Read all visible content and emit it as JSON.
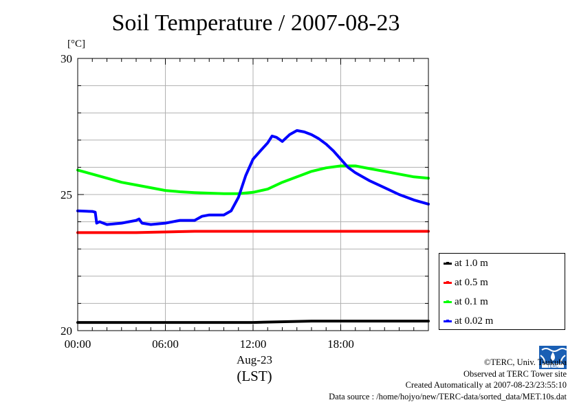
{
  "chart_data": {
    "type": "line",
    "title": "Soil Temperature / 2007-08-23",
    "ylabel": "[°C]",
    "xlabel_date": "Aug-23",
    "xlabel_unit": "(LST)",
    "ylim": [
      20,
      30
    ],
    "y_ticks": [
      "20",
      "25",
      "30"
    ],
    "xlim_hours": [
      0,
      24
    ],
    "x_ticks": [
      "00:00",
      "06:00",
      "12:00",
      "18:00"
    ],
    "grid": true,
    "legend_position": "right",
    "series": [
      {
        "name": "at 1.0 m",
        "color": "#000000",
        "x": [
          0,
          4,
          8,
          12,
          16,
          20,
          24
        ],
        "values": [
          20.3,
          20.3,
          20.3,
          20.3,
          20.35,
          20.35,
          20.35
        ]
      },
      {
        "name": "at 0.5 m",
        "color": "#ff0000",
        "x": [
          0,
          4,
          8,
          12,
          16,
          20,
          24
        ],
        "values": [
          23.6,
          23.6,
          23.65,
          23.65,
          23.65,
          23.65,
          23.65
        ]
      },
      {
        "name": "at 0.1 m",
        "color": "#00ff00",
        "x": [
          0,
          1,
          2,
          3,
          4,
          5,
          6,
          7,
          8,
          9,
          10,
          11,
          12,
          13,
          14,
          15,
          16,
          17,
          18,
          19,
          20,
          21,
          22,
          23,
          24
        ],
        "values": [
          25.9,
          25.75,
          25.6,
          25.45,
          25.35,
          25.25,
          25.15,
          25.1,
          25.07,
          25.05,
          25.03,
          25.03,
          25.08,
          25.2,
          25.45,
          25.65,
          25.85,
          25.98,
          26.05,
          26.05,
          25.95,
          25.85,
          25.75,
          25.65,
          25.6
        ]
      },
      {
        "name": "at 0.02 m",
        "color": "#0000ff",
        "x": [
          0,
          1,
          1.2,
          1.3,
          1.5,
          2,
          3,
          4,
          4.2,
          4.4,
          5,
          6,
          7,
          8,
          8.5,
          9,
          10,
          10.5,
          11,
          11.5,
          12,
          12.5,
          13,
          13.3,
          13.6,
          14,
          14.5,
          15,
          15.5,
          16,
          16.5,
          17,
          17.5,
          18,
          18.5,
          19,
          20,
          21,
          22,
          23,
          24
        ],
        "values": [
          24.4,
          24.38,
          24.35,
          23.95,
          24.0,
          23.9,
          23.95,
          24.05,
          24.1,
          23.95,
          23.9,
          23.95,
          24.05,
          24.05,
          24.2,
          24.25,
          24.25,
          24.4,
          24.9,
          25.7,
          26.3,
          26.6,
          26.9,
          27.15,
          27.1,
          26.95,
          27.2,
          27.35,
          27.3,
          27.2,
          27.05,
          26.85,
          26.6,
          26.3,
          26.0,
          25.8,
          25.5,
          25.25,
          25.0,
          24.8,
          24.65
        ]
      }
    ]
  },
  "credits": {
    "copyright": "©TERC, Univ. Tsukuba",
    "observed": "Observed at TERC Tower site",
    "created": "Created Automatically at 2007-08-23/23:55:10",
    "source": "Data source : /home/hojyo/new/TERC-data/sorted_data/MET.10s.dat",
    "logo_text": "TERC"
  }
}
